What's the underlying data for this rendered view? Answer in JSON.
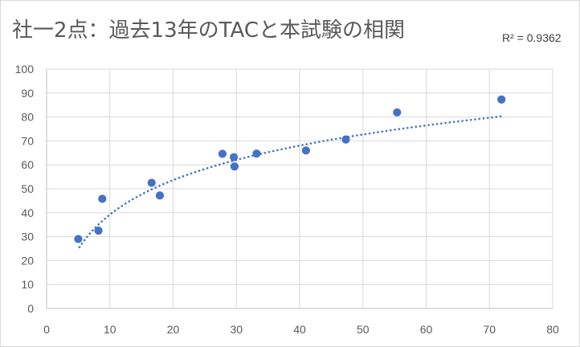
{
  "title": "社一2点：過去13年のTACと本試験の相関",
  "r2_text": "R² = 0.9362",
  "chart_data": {
    "type": "scatter",
    "title": "社一2点：過去13年のTACと本試験の相関",
    "xlabel": "",
    "ylabel": "",
    "xlim": [
      0,
      80
    ],
    "ylim": [
      0,
      100
    ],
    "x_ticks": [
      0,
      10,
      20,
      30,
      40,
      50,
      60,
      70,
      80
    ],
    "y_ticks": [
      0,
      10,
      20,
      30,
      40,
      50,
      60,
      70,
      80,
      90,
      100
    ],
    "grid": true,
    "legend": "none",
    "point_color": "#4472c4",
    "trendline": {
      "type": "logarithmic",
      "style": "dotted",
      "color": "#4472c4",
      "r_squared": 0.9362,
      "x_range": [
        5.2,
        72
      ],
      "coefficients": {
        "a": 20.8,
        "b": -8.7
      }
    },
    "points": [
      {
        "x": 5,
        "y": 29
      },
      {
        "x": 8.2,
        "y": 32.5
      },
      {
        "x": 8.8,
        "y": 45.8
      },
      {
        "x": 16.6,
        "y": 52.5
      },
      {
        "x": 17.9,
        "y": 47.2
      },
      {
        "x": 27.8,
        "y": 64.6
      },
      {
        "x": 29.6,
        "y": 63.2
      },
      {
        "x": 29.7,
        "y": 59.3
      },
      {
        "x": 33.2,
        "y": 64.7
      },
      {
        "x": 41,
        "y": 66
      },
      {
        "x": 47.3,
        "y": 70.6
      },
      {
        "x": 55.4,
        "y": 81.9
      },
      {
        "x": 71.9,
        "y": 87.3
      }
    ]
  }
}
